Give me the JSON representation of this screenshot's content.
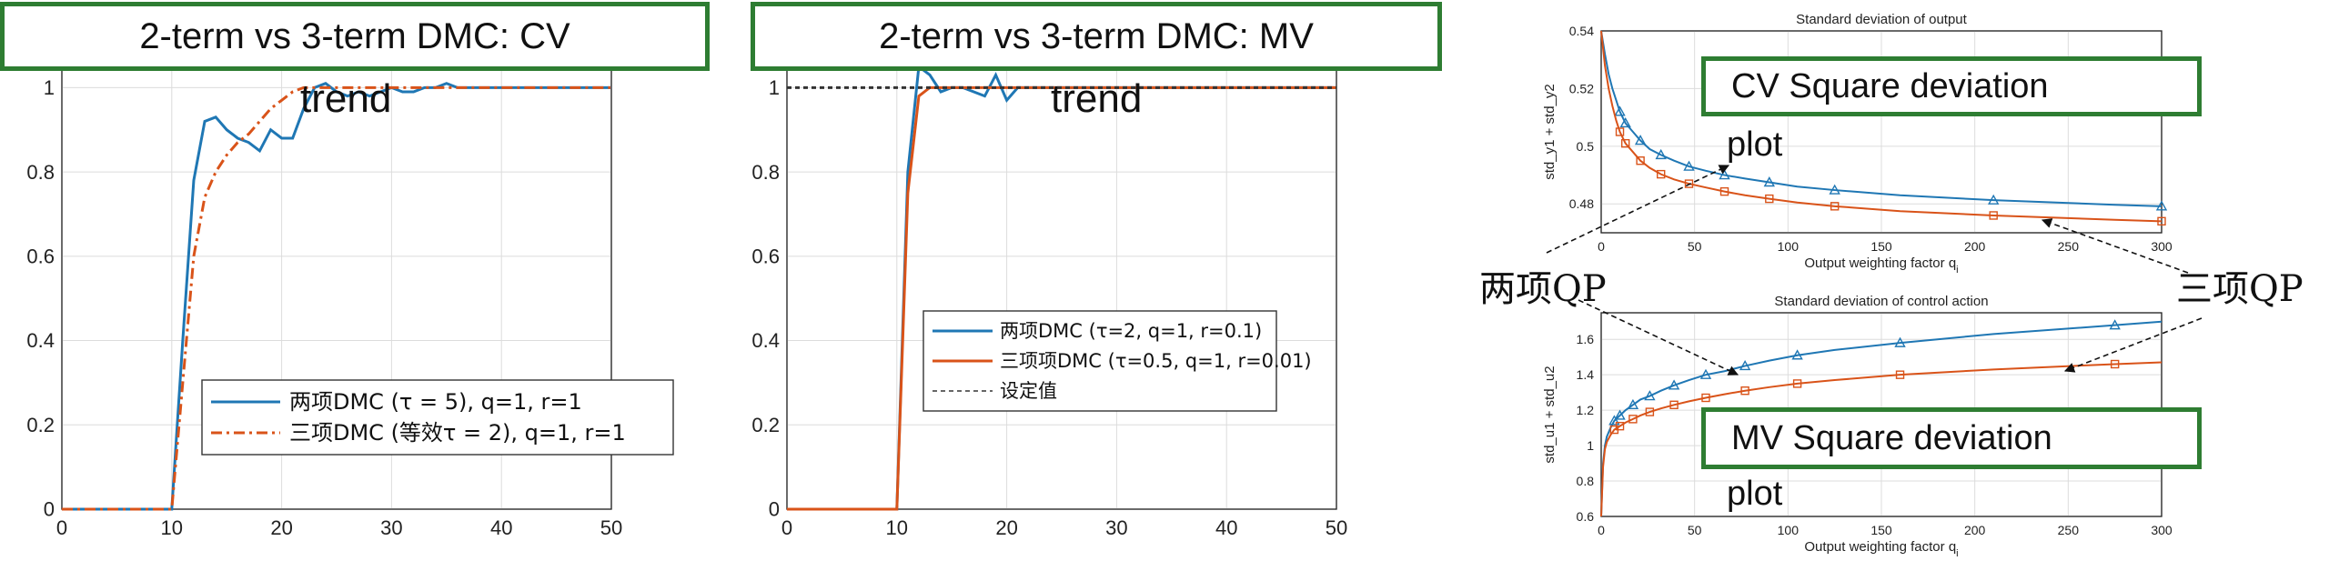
{
  "chart_data": [
    {
      "type": "line",
      "title": "2-term vs 3-term DMC: CV",
      "title_cont": "trend",
      "xlim": [
        0,
        50
      ],
      "ylim": [
        0,
        1.1
      ],
      "xticks": [
        0,
        10,
        20,
        30,
        40,
        50
      ],
      "yticks": [
        0,
        0.2,
        0.4,
        0.6,
        0.8,
        1
      ],
      "grid": true,
      "legend_position": "lower-right",
      "series": [
        {
          "name": "两项DMC (τ = 5), q=1, r=1",
          "color": "#1f77b4",
          "dash": "solid",
          "x": [
            0,
            10,
            11,
            12,
            13,
            14,
            15,
            16,
            17,
            18,
            19,
            20,
            21,
            22,
            23,
            24,
            25,
            26,
            27,
            28,
            29,
            30,
            31,
            32,
            33,
            34,
            35,
            36,
            38,
            40,
            45,
            50
          ],
          "y": [
            0,
            0,
            0.4,
            0.78,
            0.92,
            0.93,
            0.9,
            0.88,
            0.87,
            0.85,
            0.9,
            0.88,
            0.88,
            0.95,
            1.0,
            1.01,
            0.99,
            0.98,
            0.99,
            0.98,
            0.99,
            1.0,
            0.99,
            0.99,
            1.0,
            1.0,
            1.01,
            1.0,
            1.0,
            1.0,
            1.0,
            1.0
          ]
        },
        {
          "name": "三项DMC (等效τ = 2), q=1, r=1",
          "color": "#d95319",
          "dash": "dashdot",
          "x": [
            0,
            10,
            11,
            12,
            13,
            14,
            15,
            16,
            17,
            18,
            19,
            20,
            21,
            22,
            23,
            24,
            25,
            26,
            28,
            30,
            35,
            40,
            45,
            50
          ],
          "y": [
            0,
            0,
            0.3,
            0.6,
            0.74,
            0.8,
            0.84,
            0.87,
            0.89,
            0.92,
            0.95,
            0.97,
            0.99,
            1.0,
            1.0,
            1.0,
            1.0,
            1.0,
            1.0,
            1.0,
            1.0,
            1.0,
            1.0,
            1.0
          ]
        }
      ]
    },
    {
      "type": "line",
      "title": "2-term vs 3-term DMC: MV",
      "title_cont": "trend",
      "xlim": [
        0,
        50
      ],
      "ylim": [
        0,
        1.1
      ],
      "xticks": [
        0,
        10,
        20,
        30,
        40,
        50
      ],
      "yticks": [
        0,
        0.2,
        0.4,
        0.6,
        0.8,
        1
      ],
      "grid": true,
      "legend_position": "right",
      "series": [
        {
          "name": "两项DMC (τ=2, q=1, r=0.1)",
          "color": "#1f77b4",
          "dash": "solid",
          "x": [
            0,
            10,
            11,
            12,
            13,
            14,
            15,
            16,
            17,
            18,
            19,
            20,
            21,
            22,
            23,
            24,
            25,
            26,
            27,
            28,
            29,
            30,
            35,
            40,
            45,
            50
          ],
          "y": [
            0,
            0,
            0.8,
            1.05,
            1.03,
            0.99,
            1.0,
            1.0,
            0.99,
            0.98,
            1.03,
            0.97,
            1.0,
            1.0,
            1.0,
            1.0,
            1.0,
            1.0,
            1.0,
            1.0,
            1.0,
            1.0,
            1.0,
            1.0,
            1.0,
            1.0
          ]
        },
        {
          "name": "三项项DMC (τ=0.5, q=1, r=0.01)",
          "color": "#d95319",
          "dash": "solid",
          "x": [
            0,
            10,
            11,
            12,
            13,
            14,
            15,
            20,
            30,
            40,
            50
          ],
          "y": [
            0,
            0,
            0.75,
            0.98,
            1.0,
            1.0,
            1.0,
            1.0,
            1.0,
            1.0,
            1.0
          ]
        },
        {
          "name": "设定值",
          "color": "#333333",
          "dash": "dashed",
          "x": [
            0,
            50
          ],
          "y": [
            1,
            1
          ]
        }
      ]
    },
    {
      "type": "line",
      "title": "Standard deviation of output",
      "xlabel": "Output weighting factor q",
      "xlabel_sub": "i",
      "ylabel": "std",
      "ylabel_full": "std_y1 + std_y2",
      "xlim": [
        0,
        300
      ],
      "ylim": [
        0.47,
        0.54
      ],
      "xticks": [
        0,
        50,
        100,
        150,
        200,
        250,
        300
      ],
      "yticks": [
        0.48,
        0.5,
        0.52,
        0.54
      ],
      "grid": true,
      "series": [
        {
          "color": "#1f77b4",
          "marker": "triangle",
          "x": [
            0,
            2,
            4,
            6,
            8,
            10,
            13,
            17,
            21,
            26,
            32,
            39,
            47,
            56,
            66,
            77,
            90,
            105,
            125,
            160,
            210,
            275,
            300
          ],
          "y": [
            0.54,
            0.532,
            0.525,
            0.52,
            0.516,
            0.512,
            0.508,
            0.505,
            0.502,
            0.499,
            0.497,
            0.495,
            0.493,
            0.4915,
            0.49,
            0.4888,
            0.4875,
            0.486,
            0.4848,
            0.483,
            0.4813,
            0.4797,
            0.4792
          ]
        },
        {
          "color": "#d95319",
          "marker": "square",
          "x": [
            0,
            2,
            4,
            6,
            8,
            10,
            13,
            17,
            21,
            26,
            32,
            39,
            47,
            56,
            66,
            77,
            90,
            105,
            125,
            160,
            210,
            275,
            300
          ],
          "y": [
            0.54,
            0.528,
            0.52,
            0.514,
            0.509,
            0.505,
            0.501,
            0.498,
            0.495,
            0.4925,
            0.4903,
            0.4885,
            0.487,
            0.4857,
            0.4843,
            0.483,
            0.4818,
            0.4805,
            0.4792,
            0.4775,
            0.476,
            0.4745,
            0.474
          ]
        }
      ]
    },
    {
      "type": "line",
      "title": "Standard deviation of control action",
      "xlabel": "Output weighting factor q",
      "xlabel_sub": "i",
      "ylabel": "std",
      "ylabel_full": "std_u1 + std_u2",
      "xlim": [
        0,
        300
      ],
      "ylim": [
        0.6,
        1.75
      ],
      "xticks": [
        0,
        50,
        100,
        150,
        200,
        250,
        300
      ],
      "yticks": [
        0.6,
        0.8,
        1,
        1.2,
        1.4,
        1.6
      ],
      "grid": true,
      "series": [
        {
          "color": "#1f77b4",
          "marker": "triangle",
          "x": [
            0,
            1,
            2,
            3,
            5,
            7,
            10,
            13,
            17,
            21,
            26,
            32,
            39,
            47,
            56,
            66,
            77,
            90,
            105,
            125,
            160,
            210,
            275,
            300
          ],
          "y": [
            0.6,
            0.9,
            1.0,
            1.05,
            1.1,
            1.14,
            1.17,
            1.2,
            1.23,
            1.26,
            1.28,
            1.31,
            1.34,
            1.37,
            1.4,
            1.42,
            1.45,
            1.48,
            1.51,
            1.54,
            1.58,
            1.63,
            1.68,
            1.7
          ]
        },
        {
          "color": "#d95319",
          "marker": "square",
          "x": [
            0,
            1,
            2,
            3,
            5,
            7,
            10,
            13,
            17,
            21,
            26,
            32,
            39,
            47,
            56,
            66,
            77,
            90,
            105,
            125,
            160,
            210,
            275,
            300
          ],
          "y": [
            0.6,
            0.88,
            0.98,
            1.02,
            1.06,
            1.09,
            1.11,
            1.13,
            1.15,
            1.17,
            1.19,
            1.21,
            1.23,
            1.25,
            1.27,
            1.29,
            1.31,
            1.33,
            1.35,
            1.37,
            1.4,
            1.43,
            1.46,
            1.47
          ]
        }
      ]
    }
  ],
  "annotations": {
    "cv_box": "CV Square deviation",
    "cv_box_cont": "plot",
    "mv_box": "MV Square deviation",
    "mv_box_cont": "plot",
    "two_term": "两项QP",
    "three_term": "三项QP"
  },
  "colors": {
    "blue": "#1f77b4",
    "orange": "#d95319",
    "frame_green": "#2e7d32"
  }
}
